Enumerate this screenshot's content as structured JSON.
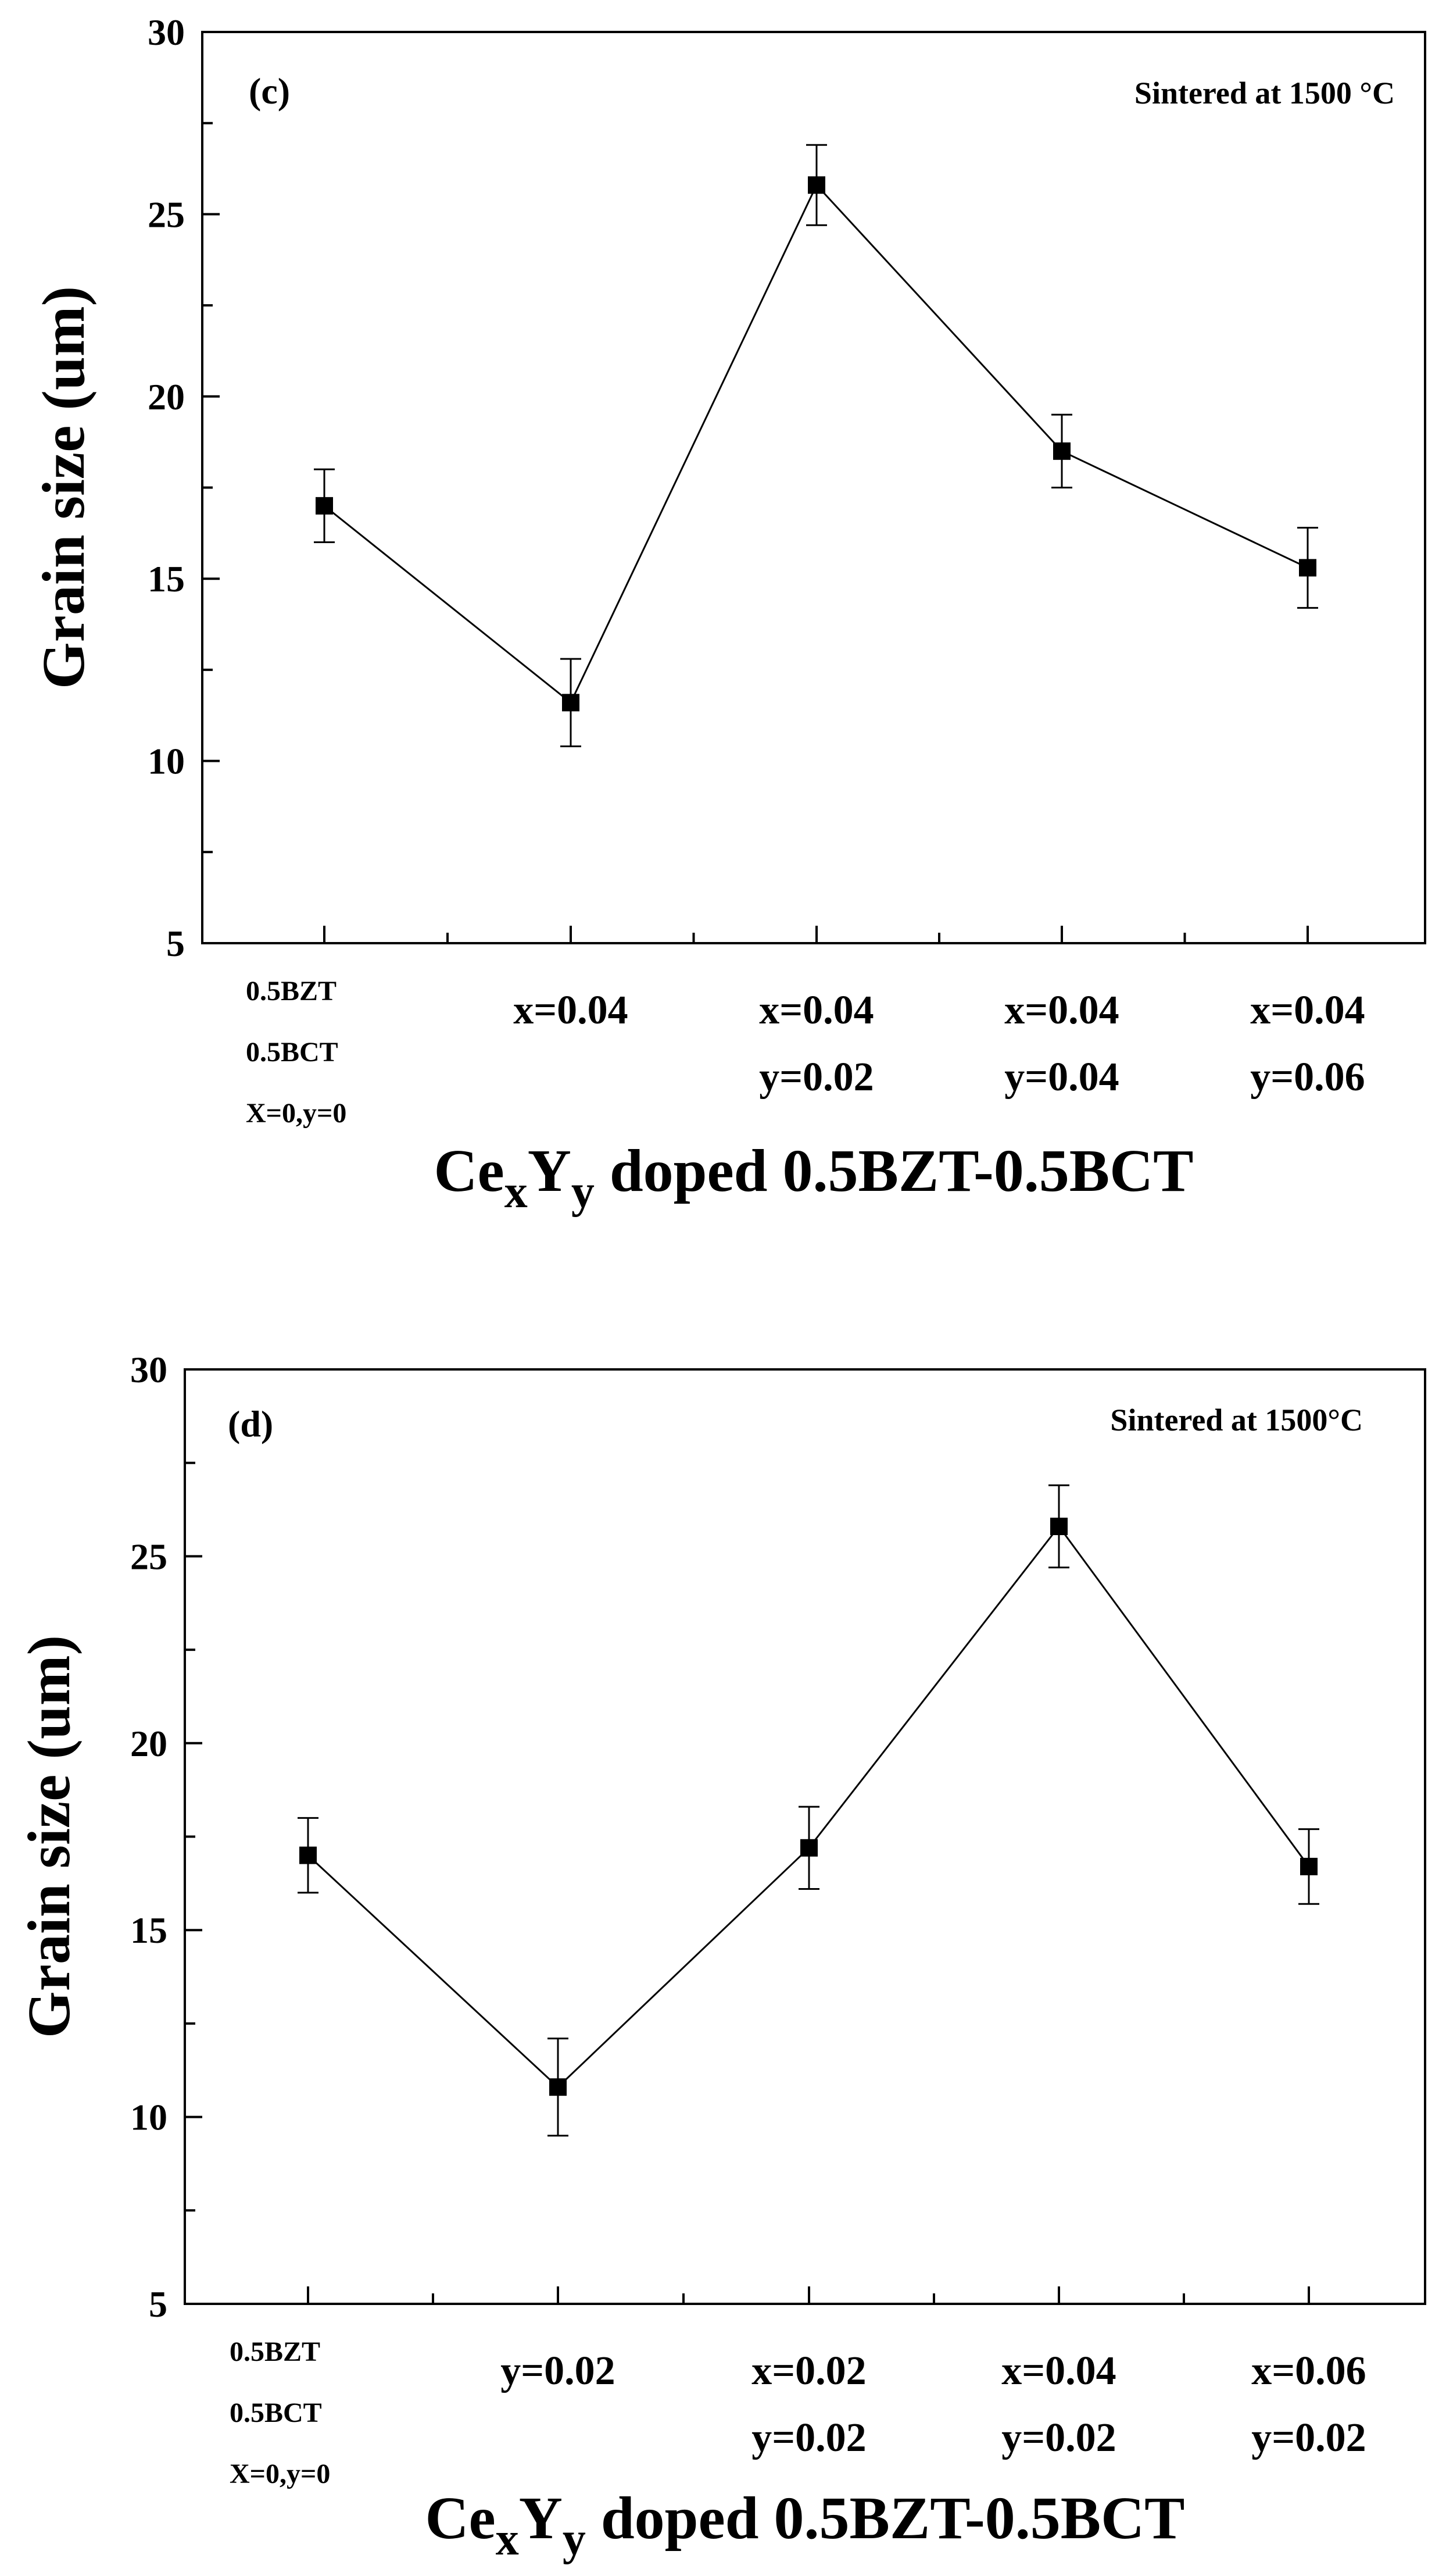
{
  "chart_data": [
    {
      "type": "line",
      "panel_label": "(c)",
      "annotation": "Sintered at 1500 °C",
      "ylabel": "Grain size (um)",
      "xlabel": {
        "base1": "Ce",
        "sub1": "x",
        "base2": "Y",
        "sub2": "y",
        "rest": " doped 0.5BZT-0.5BCT"
      },
      "ylim": [
        5,
        30
      ],
      "yticks": [
        "5",
        "10",
        "15",
        "20",
        "25",
        "30"
      ],
      "categories": [
        {
          "lines": [
            "0.5BZT",
            "0.5BCT",
            "X=0,y=0"
          ],
          "style": "small"
        },
        {
          "lines": [
            "x=0.04"
          ],
          "style": "big"
        },
        {
          "lines": [
            "x=0.04",
            "y=0.02"
          ],
          "style": "big"
        },
        {
          "lines": [
            "x=0.04",
            "y=0.04"
          ],
          "style": "big"
        },
        {
          "lines": [
            "x=0.04",
            "y=0.06"
          ],
          "style": "big"
        }
      ],
      "series": [
        {
          "values": [
            17.0,
            11.6,
            25.8,
            18.5,
            15.3
          ],
          "errors": [
            1.0,
            1.2,
            1.1,
            1.0,
            1.1
          ]
        }
      ]
    },
    {
      "type": "line",
      "panel_label": "(d)",
      "annotation": "Sintered at 1500°C",
      "ylabel": "Grain size (um)",
      "xlabel": {
        "base1": "Ce",
        "sub1": "x",
        "base2": "Y",
        "sub2": "y",
        "rest": " doped 0.5BZT-0.5BCT"
      },
      "ylim": [
        5,
        30
      ],
      "yticks": [
        "5",
        "10",
        "15",
        "20",
        "25",
        "30"
      ],
      "categories": [
        {
          "lines": [
            "0.5BZT",
            "0.5BCT",
            "X=0,y=0"
          ],
          "style": "small"
        },
        {
          "lines": [
            "y=0.02"
          ],
          "style": "big"
        },
        {
          "lines": [
            "x=0.02",
            "y=0.02"
          ],
          "style": "big"
        },
        {
          "lines": [
            "x=0.04",
            "y=0.02"
          ],
          "style": "big"
        },
        {
          "lines": [
            "x=0.06",
            "y=0.02"
          ],
          "style": "big"
        }
      ],
      "series": [
        {
          "values": [
            17.0,
            10.8,
            17.2,
            25.8,
            16.7
          ],
          "errors": [
            1.0,
            1.3,
            1.1,
            1.1,
            1.0
          ]
        }
      ]
    }
  ]
}
